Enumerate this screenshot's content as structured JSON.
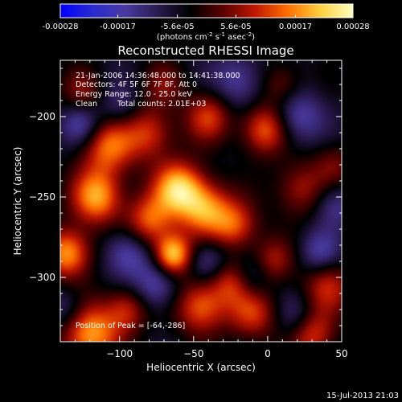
{
  "colorbar": {
    "tick_labels": [
      "-0.00028",
      "-0.00017",
      "-5.6e-05",
      "5.6e-05",
      "0.00017",
      "0.00028"
    ],
    "tick_values": [
      -0.00028,
      -0.00017,
      -5.6e-05,
      5.6e-05,
      0.00017,
      0.00028
    ],
    "range": [
      -0.00028,
      0.00028
    ],
    "unit_prefix": "(photons cm",
    "unit_sup1": "-2",
    "unit_mid": " s",
    "unit_sup2": "-1",
    "unit_mid2": " asec",
    "unit_sup3": "-2",
    "unit_suffix": ")",
    "colormap": [
      "#0000ff",
      "#2a2ad0",
      "#4a3aa0",
      "#2a1a50",
      "#000000",
      "#5a0000",
      "#c01800",
      "#ff7000",
      "#ffd040",
      "#ffffc0"
    ]
  },
  "title": "Reconstructed RHESSI Image",
  "annotations": {
    "time": "21-Jan-2006 14:36:48.000 to 14:41:38.000",
    "detectors": "Detectors: 4F 5F 6F 7F 8F, Att 0",
    "energy": "Energy Range: 12.0 - 25.0 keV",
    "method": "Clean",
    "counts": "Total counts: 2.01E+03",
    "peak": "Position of Peak = [-64,-286]"
  },
  "footer_timestamp": "15-Jul-2013 21:03",
  "chart_data": {
    "type": "heatmap",
    "title": "Reconstructed RHESSI Image",
    "xlabel": "Heliocentric X (arcsec)",
    "ylabel": "Heliocentric Y (arcsec)",
    "xlim": [
      -140,
      50
    ],
    "ylim": [
      -340,
      -165
    ],
    "x_ticks": [
      -100,
      -50,
      0,
      50
    ],
    "x_tick_labels": [
      "−100",
      "−50",
      "0",
      "50"
    ],
    "y_ticks": [
      -200,
      -250,
      -300
    ],
    "y_tick_labels": [
      "−200",
      "−250",
      "−300"
    ],
    "peak_position": [
      -64,
      -286
    ],
    "blobs": [
      {
        "x": -64,
        "y": -286,
        "v": 1.0,
        "s": 9
      },
      {
        "x": -60,
        "y": -245,
        "v": 0.95,
        "s": 12
      },
      {
        "x": -115,
        "y": -250,
        "v": 0.85,
        "s": 12
      },
      {
        "x": -135,
        "y": -285,
        "v": 0.85,
        "s": 11
      },
      {
        "x": -108,
        "y": -218,
        "v": 0.7,
        "s": 13
      },
      {
        "x": -80,
        "y": -210,
        "v": 0.55,
        "s": 12
      },
      {
        "x": -40,
        "y": -200,
        "v": 0.55,
        "s": 11
      },
      {
        "x": -2,
        "y": -208,
        "v": 0.7,
        "s": 11
      },
      {
        "x": -42,
        "y": -258,
        "v": 0.75,
        "s": 12
      },
      {
        "x": -22,
        "y": -268,
        "v": 0.6,
        "s": 11
      },
      {
        "x": -80,
        "y": -265,
        "v": 0.65,
        "s": 11
      },
      {
        "x": -45,
        "y": -318,
        "v": 0.7,
        "s": 12
      },
      {
        "x": -25,
        "y": -302,
        "v": 0.5,
        "s": 10
      },
      {
        "x": -10,
        "y": -322,
        "v": 0.55,
        "s": 12
      },
      {
        "x": 3,
        "y": -290,
        "v": 0.45,
        "s": 10
      },
      {
        "x": -120,
        "y": -335,
        "v": 0.85,
        "s": 14
      },
      {
        "x": -95,
        "y": -320,
        "v": 0.5,
        "s": 10
      },
      {
        "x": 22,
        "y": -245,
        "v": 0.45,
        "s": 12
      },
      {
        "x": 40,
        "y": -305,
        "v": 0.5,
        "s": 12
      },
      {
        "x": 30,
        "y": -335,
        "v": 0.6,
        "s": 11
      },
      {
        "x": 45,
        "y": -230,
        "v": 0.3,
        "s": 10
      },
      {
        "x": -125,
        "y": -185,
        "v": 0.35,
        "s": 10
      },
      {
        "x": -70,
        "y": -180,
        "v": 0.3,
        "s": 10
      },
      {
        "x": 10,
        "y": -180,
        "v": 0.35,
        "s": 10
      },
      {
        "x": -125,
        "y": -205,
        "v": -0.45,
        "s": 10
      },
      {
        "x": -20,
        "y": -178,
        "v": -0.4,
        "s": 12
      },
      {
        "x": 20,
        "y": -200,
        "v": -0.45,
        "s": 12
      },
      {
        "x": 45,
        "y": -255,
        "v": -0.35,
        "s": 10
      },
      {
        "x": -95,
        "y": -285,
        "v": -0.45,
        "s": 11
      },
      {
        "x": -40,
        "y": -290,
        "v": -0.4,
        "s": 10
      },
      {
        "x": -10,
        "y": -300,
        "v": -0.35,
        "s": 10
      },
      {
        "x": 35,
        "y": -285,
        "v": -0.4,
        "s": 10
      },
      {
        "x": -75,
        "y": -305,
        "v": -0.45,
        "s": 11
      },
      {
        "x": -135,
        "y": -320,
        "v": -0.35,
        "s": 10
      },
      {
        "x": 20,
        "y": -325,
        "v": -0.3,
        "s": 10
      },
      {
        "x": -100,
        "y": -195,
        "v": -0.3,
        "s": 10
      }
    ]
  }
}
